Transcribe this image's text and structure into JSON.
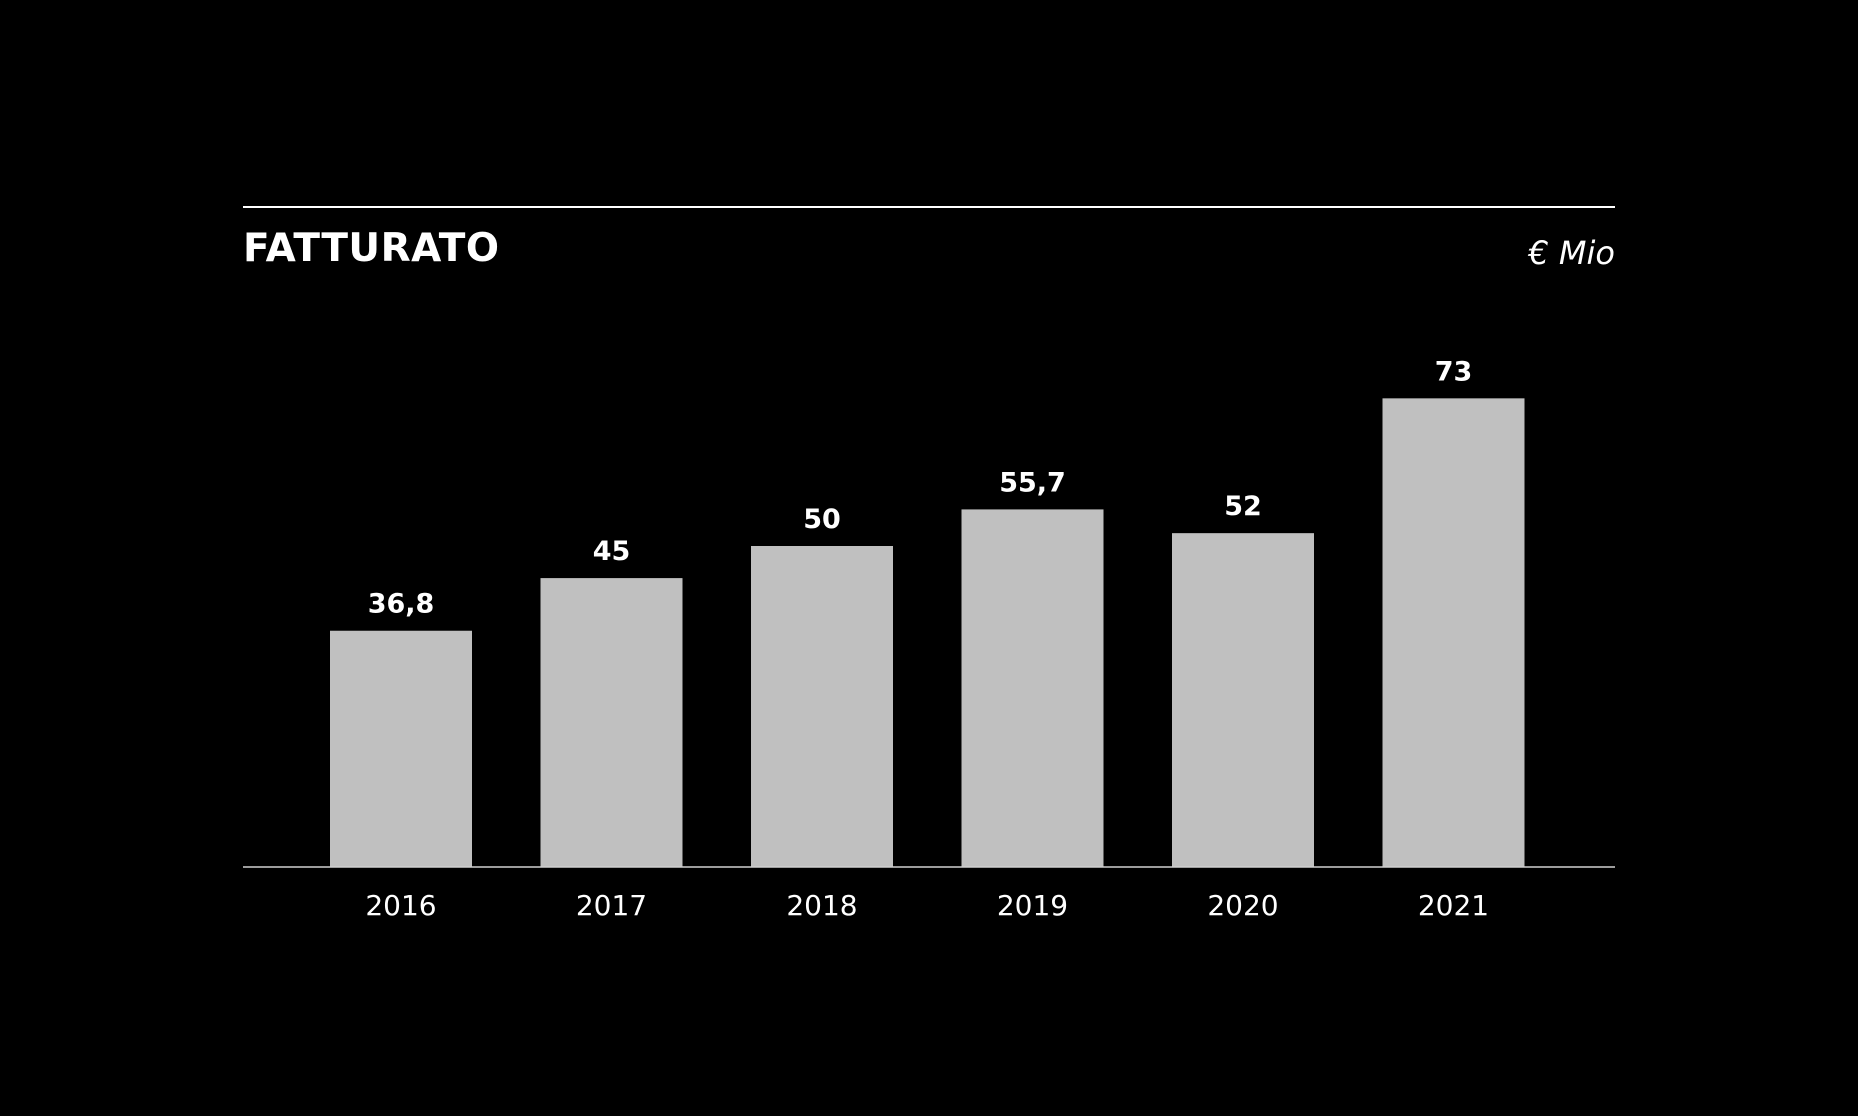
{
  "colors": {
    "background": "#000000",
    "bar": "#c0c0c0",
    "text": "#ffffff",
    "rule": "#ffffff"
  },
  "chart_data": {
    "type": "bar",
    "title": "FATTURATO",
    "unit_label": "€ Mio",
    "categories": [
      "2016",
      "2017",
      "2018",
      "2019",
      "2020",
      "2021"
    ],
    "values": [
      36.8,
      45,
      50,
      55.7,
      52,
      73
    ],
    "value_labels": [
      "36,8",
      "45",
      "50",
      "55,7",
      "52",
      "73"
    ],
    "xlabel": "",
    "ylabel": "",
    "ylim": [
      0,
      80
    ],
    "grid": false,
    "legend": "none"
  }
}
